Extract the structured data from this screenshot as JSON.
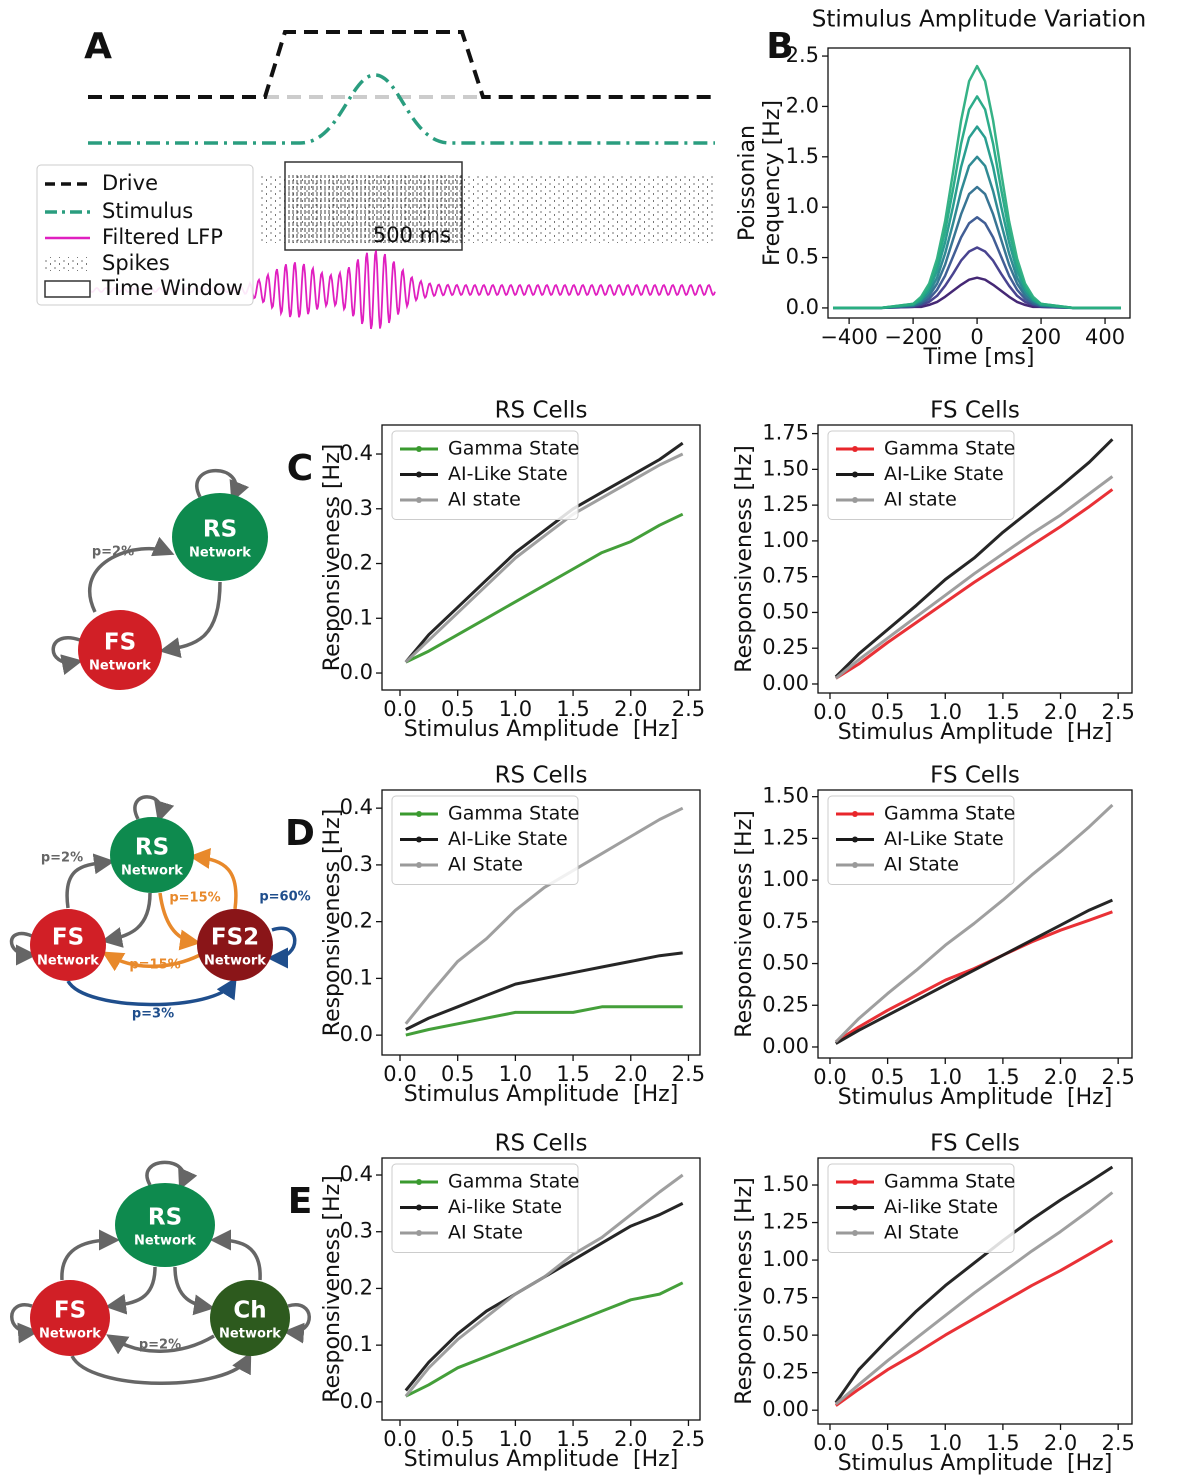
{
  "chart_data": [
    {
      "type": "schematic",
      "panel": "A",
      "legend": [
        "Drive",
        "Stimulus",
        "Filtered LFP",
        "Spikes",
        "Time Window"
      ],
      "annotation": "500 ms"
    },
    {
      "type": "line",
      "panel": "B",
      "title": "Stimulus Amplitude Variation",
      "xlabel": "Time [ms]",
      "ylabel": [
        "Poissonian",
        "Frequency [Hz]"
      ],
      "x": [
        -450,
        -300,
        -200,
        -175,
        -150,
        -125,
        -100,
        -75,
        -50,
        -25,
        0,
        25,
        50,
        75,
        100,
        125,
        150,
        175,
        200,
        300,
        450
      ],
      "series": [
        {
          "color": "#3b1c6e",
          "values": [
            0,
            0,
            0.01,
            0.01,
            0.03,
            0.06,
            0.11,
            0.17,
            0.23,
            0.28,
            0.3,
            0.28,
            0.23,
            0.17,
            0.11,
            0.06,
            0.03,
            0.01,
            0.01,
            0,
            0
          ]
        },
        {
          "color": "#3f3a8a",
          "values": [
            0,
            0,
            0.01,
            0.03,
            0.06,
            0.12,
            0.22,
            0.34,
            0.47,
            0.56,
            0.6,
            0.56,
            0.47,
            0.34,
            0.22,
            0.12,
            0.06,
            0.03,
            0.01,
            0,
            0
          ]
        },
        {
          "color": "#37558f",
          "values": [
            0,
            0,
            0.02,
            0.04,
            0.09,
            0.18,
            0.32,
            0.51,
            0.7,
            0.84,
            0.9,
            0.84,
            0.7,
            0.51,
            0.32,
            0.18,
            0.09,
            0.04,
            0.02,
            0,
            0
          ]
        },
        {
          "color": "#2d6e8e",
          "values": [
            0,
            0,
            0.02,
            0.05,
            0.12,
            0.24,
            0.43,
            0.68,
            0.93,
            1.13,
            1.2,
            1.13,
            0.93,
            0.68,
            0.43,
            0.24,
            0.12,
            0.05,
            0.02,
            0,
            0
          ]
        },
        {
          "color": "#25848e",
          "values": [
            0,
            0,
            0.03,
            0.07,
            0.15,
            0.3,
            0.54,
            0.84,
            1.16,
            1.41,
            1.5,
            1.41,
            1.16,
            0.84,
            0.54,
            0.3,
            0.15,
            0.07,
            0.03,
            0,
            0
          ]
        },
        {
          "color": "#1f998a",
          "values": [
            0,
            0,
            0.03,
            0.08,
            0.18,
            0.37,
            0.65,
            1.01,
            1.4,
            1.69,
            1.8,
            1.69,
            1.4,
            1.01,
            0.65,
            0.37,
            0.18,
            0.08,
            0.03,
            0,
            0
          ]
        },
        {
          "color": "#22a884",
          "values": [
            0,
            0,
            0.04,
            0.09,
            0.21,
            0.43,
            0.76,
            1.18,
            1.63,
            1.97,
            2.1,
            1.97,
            1.63,
            1.18,
            0.76,
            0.43,
            0.21,
            0.09,
            0.04,
            0,
            0
          ]
        },
        {
          "color": "#2bae80",
          "values": [
            0,
            0,
            0.04,
            0.11,
            0.24,
            0.49,
            0.86,
            1.35,
            1.86,
            2.25,
            2.4,
            2.25,
            1.86,
            1.35,
            0.86,
            0.49,
            0.24,
            0.11,
            0.04,
            0,
            0
          ]
        }
      ],
      "xlim": [
        -466,
        478
      ],
      "ylim": [
        -0.1,
        2.58
      ],
      "xticks": [
        {
          "value": -400,
          "label": "−400"
        },
        {
          "value": -200,
          "label": "−200"
        },
        0,
        200,
        400
      ],
      "yticks": [
        {
          "value": 0,
          "label": "0.0"
        },
        0.5,
        {
          "value": 1,
          "label": "1.0"
        },
        1.5,
        {
          "value": 2,
          "label": "2.0"
        },
        2.5
      ]
    },
    {
      "type": "line",
      "panel": "C",
      "title": "RS Cells",
      "xlabel": "Stimulus Amplitude  [Hz]",
      "ylabel": "Responsiveness [Hz]",
      "legend": "upper left",
      "x": [
        0.05,
        0.25,
        0.5,
        0.75,
        1,
        1.25,
        1.5,
        1.75,
        2,
        2.25,
        2.45
      ],
      "series": [
        {
          "name": "Gamma State",
          "color": "#3a9a2f",
          "values": [
            0.02,
            0.04,
            0.07,
            0.1,
            0.13,
            0.16,
            0.19,
            0.22,
            0.24,
            0.27,
            0.29
          ]
        },
        {
          "name": "AI-Like State",
          "color": "#1a1a1a",
          "values": [
            0.02,
            0.07,
            0.12,
            0.17,
            0.22,
            0.26,
            0.3,
            0.33,
            0.36,
            0.39,
            0.42
          ]
        },
        {
          "name": "AI state",
          "color": "#9a9a9a",
          "values": [
            0.02,
            0.06,
            0.11,
            0.16,
            0.21,
            0.25,
            0.29,
            0.32,
            0.35,
            0.38,
            0.4
          ]
        }
      ],
      "xlim": [
        -0.156,
        2.6
      ],
      "ylim": [
        -0.031,
        0.453
      ],
      "xticks": [
        {
          "value": 0,
          "label": "0.0"
        },
        0.5,
        {
          "value": 1,
          "label": "1.0"
        },
        1.5,
        {
          "value": 2,
          "label": "2.0"
        },
        2.5
      ],
      "yticks": [
        {
          "value": 0,
          "label": "0.0"
        },
        0.1,
        0.2,
        0.3,
        0.4
      ]
    },
    {
      "type": "line",
      "title": "FS Cells",
      "xlabel": "Stimulus Amplitude  [Hz]",
      "ylabel": "Responsiveness [Hz]",
      "legend": "upper left",
      "x": [
        0.05,
        0.25,
        0.5,
        0.75,
        1,
        1.25,
        1.5,
        1.75,
        2,
        2.25,
        2.45
      ],
      "series": [
        {
          "name": "Gamma State",
          "color": "#e8262b",
          "values": [
            0.04,
            0.14,
            0.29,
            0.43,
            0.57,
            0.71,
            0.84,
            0.97,
            1.1,
            1.24,
            1.36
          ]
        },
        {
          "name": "AI-Like State",
          "color": "#1a1a1a",
          "values": [
            0.05,
            0.21,
            0.38,
            0.55,
            0.73,
            0.88,
            1.06,
            1.22,
            1.38,
            1.55,
            1.71
          ]
        },
        {
          "name": "AI state",
          "color": "#9a9a9a",
          "values": [
            0.04,
            0.17,
            0.32,
            0.47,
            0.62,
            0.77,
            0.91,
            1.05,
            1.18,
            1.33,
            1.45
          ]
        }
      ],
      "xlim": [
        -0.104,
        2.62
      ],
      "ylim": [
        -0.063,
        1.81
      ],
      "xticks": [
        {
          "value": 0,
          "label": "0.0"
        },
        0.5,
        {
          "value": 1,
          "label": "1.0"
        },
        1.5,
        {
          "value": 2,
          "label": "2.0"
        },
        2.5
      ],
      "yticks": [
        {
          "value": 0,
          "label": "0.00"
        },
        0.25,
        {
          "value": 0.5,
          "label": "0.50"
        },
        0.75,
        {
          "value": 1,
          "label": "1.00"
        },
        1.25,
        {
          "value": 1.5,
          "label": "1.50"
        },
        1.75
      ]
    },
    {
      "type": "line",
      "panel": "D",
      "title": "RS Cells",
      "xlabel": "Stimulus Amplitude  [Hz]",
      "ylabel": "Responsiveness [Hz]",
      "legend": "upper left",
      "x": [
        0.05,
        0.25,
        0.5,
        0.75,
        1,
        1.25,
        1.5,
        1.75,
        2,
        2.25,
        2.45
      ],
      "series": [
        {
          "name": "Gamma State",
          "color": "#3a9a2f",
          "values": [
            0,
            0.01,
            0.02,
            0.03,
            0.04,
            0.04,
            0.04,
            0.05,
            0.05,
            0.05,
            0.05
          ]
        },
        {
          "name": "AI-Like State",
          "color": "#1a1a1a",
          "values": [
            0.01,
            0.03,
            0.05,
            0.07,
            0.09,
            0.1,
            0.11,
            0.12,
            0.13,
            0.14,
            0.145
          ]
        },
        {
          "name": "AI State",
          "color": "#9a9a9a",
          "values": [
            0.02,
            0.07,
            0.13,
            0.17,
            0.22,
            0.26,
            0.29,
            0.32,
            0.35,
            0.38,
            0.4
          ]
        }
      ],
      "xlim": [
        -0.156,
        2.6
      ],
      "ylim": [
        -0.035,
        0.432
      ],
      "xticks": [
        {
          "value": 0,
          "label": "0.0"
        },
        0.5,
        {
          "value": 1,
          "label": "1.0"
        },
        1.5,
        {
          "value": 2,
          "label": "2.0"
        },
        2.5
      ],
      "yticks": [
        {
          "value": 0,
          "label": "0.0"
        },
        0.1,
        0.2,
        0.3,
        0.4
      ]
    },
    {
      "type": "line",
      "title": "FS Cells",
      "xlabel": "Stimulus Amplitude  [Hz]",
      "ylabel": "Responsiveness [Hz]",
      "legend": "upper left",
      "x": [
        0.05,
        0.25,
        0.5,
        0.75,
        1,
        1.25,
        1.5,
        1.75,
        2,
        2.25,
        2.45
      ],
      "series": [
        {
          "name": "Gamma State",
          "color": "#e8262b",
          "values": [
            0.03,
            0.12,
            0.22,
            0.31,
            0.4,
            0.47,
            0.55,
            0.63,
            0.7,
            0.76,
            0.81
          ]
        },
        {
          "name": "AI-Like State",
          "color": "#1a1a1a",
          "values": [
            0.02,
            0.1,
            0.19,
            0.28,
            0.37,
            0.46,
            0.55,
            0.64,
            0.73,
            0.82,
            0.88
          ]
        },
        {
          "name": "AI State",
          "color": "#9a9a9a",
          "values": [
            0.03,
            0.17,
            0.32,
            0.46,
            0.61,
            0.74,
            0.88,
            1.03,
            1.17,
            1.32,
            1.45
          ]
        }
      ],
      "xlim": [
        -0.104,
        2.62
      ],
      "ylim": [
        -0.066,
        1.54
      ],
      "xticks": [
        {
          "value": 0,
          "label": "0.0"
        },
        0.5,
        {
          "value": 1,
          "label": "1.0"
        },
        1.5,
        {
          "value": 2,
          "label": "2.0"
        },
        2.5
      ],
      "yticks": [
        {
          "value": 0,
          "label": "0.00"
        },
        0.25,
        {
          "value": 0.5,
          "label": "0.50"
        },
        0.75,
        {
          "value": 1,
          "label": "1.00"
        },
        1.25,
        {
          "value": 1.5,
          "label": "1.50"
        }
      ]
    },
    {
      "type": "line",
      "panel": "E",
      "title": "RS Cells",
      "xlabel": "Stimulus Amplitude  [Hz]",
      "ylabel": "Responsiveness [Hz]",
      "legend": "upper left",
      "x": [
        0.05,
        0.25,
        0.5,
        0.75,
        1,
        1.25,
        1.5,
        1.75,
        2,
        2.25,
        2.45
      ],
      "series": [
        {
          "name": "Gamma State",
          "color": "#3a9a2f",
          "values": [
            0.01,
            0.03,
            0.06,
            0.08,
            0.1,
            0.12,
            0.14,
            0.16,
            0.18,
            0.19,
            0.21
          ]
        },
        {
          "name": "Ai-like State",
          "color": "#1a1a1a",
          "values": [
            0.02,
            0.07,
            0.12,
            0.16,
            0.19,
            0.22,
            0.25,
            0.28,
            0.31,
            0.33,
            0.35
          ]
        },
        {
          "name": "AI State",
          "color": "#9a9a9a",
          "values": [
            0.01,
            0.06,
            0.11,
            0.15,
            0.19,
            0.22,
            0.26,
            0.29,
            0.33,
            0.37,
            0.4
          ]
        }
      ],
      "xlim": [
        -0.156,
        2.6
      ],
      "ylim": [
        -0.032,
        0.43
      ],
      "xticks": [
        {
          "value": 0,
          "label": "0.0"
        },
        0.5,
        {
          "value": 1,
          "label": "1.0"
        },
        1.5,
        {
          "value": 2,
          "label": "2.0"
        },
        2.5
      ],
      "yticks": [
        {
          "value": 0,
          "label": "0.0"
        },
        0.1,
        0.2,
        0.3,
        0.4
      ]
    },
    {
      "type": "line",
      "title": "FS Cells",
      "xlabel": "Stimulus Amplitude  [Hz]",
      "ylabel": "Responsiveness [Hz]",
      "legend": "upper left",
      "x": [
        0.05,
        0.25,
        0.5,
        0.75,
        1,
        1.25,
        1.5,
        1.75,
        2,
        2.25,
        2.45
      ],
      "series": [
        {
          "name": "Gamma State",
          "color": "#e8262b",
          "values": [
            0.03,
            0.14,
            0.27,
            0.38,
            0.5,
            0.61,
            0.72,
            0.83,
            0.93,
            1.04,
            1.13
          ]
        },
        {
          "name": "Ai-like State",
          "color": "#1a1a1a",
          "values": [
            0.05,
            0.27,
            0.47,
            0.66,
            0.83,
            0.98,
            1.13,
            1.27,
            1.4,
            1.52,
            1.62
          ]
        },
        {
          "name": "AI State",
          "color": "#9a9a9a",
          "values": [
            0.04,
            0.17,
            0.33,
            0.48,
            0.63,
            0.78,
            0.92,
            1.06,
            1.19,
            1.33,
            1.45
          ]
        }
      ],
      "xlim": [
        -0.104,
        2.62
      ],
      "ylim": [
        -0.092,
        1.68
      ],
      "xticks": [
        {
          "value": 0,
          "label": "0.0"
        },
        0.5,
        {
          "value": 1,
          "label": "1.0"
        },
        1.5,
        {
          "value": 2,
          "label": "2.0"
        },
        2.5
      ],
      "yticks": [
        {
          "value": 0,
          "label": "0.00"
        },
        0.25,
        {
          "value": 0.5,
          "label": "0.50"
        },
        0.75,
        {
          "value": 1,
          "label": "1.00"
        },
        1.25,
        {
          "value": 1.5,
          "label": "1.50"
        }
      ]
    }
  ],
  "diagrams": [
    {
      "nodes": [
        {
          "label": "RS",
          "sublabel": "Network"
        },
        {
          "label": "FS",
          "sublabel": "Network"
        }
      ],
      "edge_labels": [
        "p=2%"
      ]
    },
    {
      "nodes": [
        {
          "label": "RS",
          "sublabel": "Network"
        },
        {
          "label": "FS",
          "sublabel": "Network"
        },
        {
          "label": "FS2",
          "sublabel": "Network"
        }
      ],
      "edge_labels": [
        "p=2%",
        "p=15%",
        "p=60%",
        "p=15%",
        "p=3%"
      ]
    },
    {
      "nodes": [
        {
          "label": "RS",
          "sublabel": "Network"
        },
        {
          "label": "FS",
          "sublabel": "Network"
        },
        {
          "label": "Ch",
          "sublabel": "Network"
        }
      ],
      "edge_labels": [
        "p=2%"
      ]
    }
  ]
}
